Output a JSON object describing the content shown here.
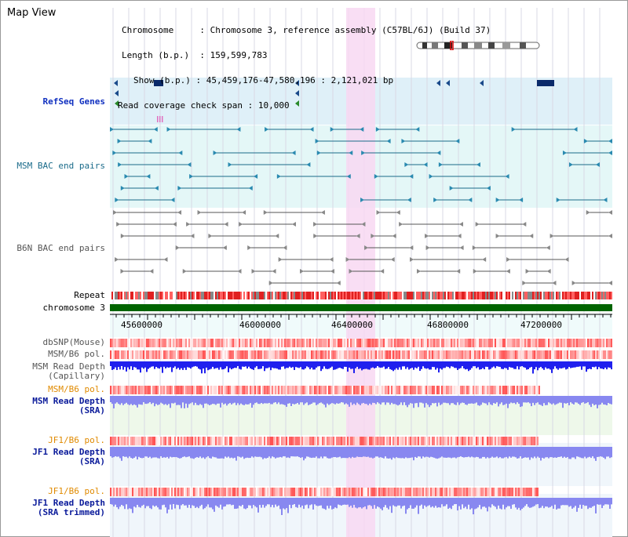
{
  "view_title": "Map View",
  "info": {
    "chromosome_label": "Chromosome",
    "chromosome_value": "Chromosome 3, reference assembly (C57BL/6J) (Build 37)",
    "length_label": "Length (b.p.)",
    "length_value": "159,599,783",
    "show_label": "Show (b.p.)",
    "show_value": "45,459,176-47,580,196 : 2,121,021 bp",
    "coverage_label": "Read coverage check span",
    "coverage_value": "10,000"
  },
  "tracks": {
    "refseq": "RefSeq Genes",
    "msm_bac": "MSM BAC end pairs",
    "b6n_bac": "B6N BAC end pairs",
    "repeat": "Repeat",
    "chromosome": "chromosome 3",
    "dbsnp": "dbSNP(Mouse)",
    "msm_b6_pol_1": "MSM/B6 pol.",
    "msm_read_depth_cap": "MSM Read Depth\n(Capillary)",
    "msm_b6_pol_2": "MSM/B6 pol.",
    "msm_read_depth_sra": "MSM Read Depth\n(SRA)",
    "jf1_b6_pol_1": "JF1/B6 pol.",
    "jf1_read_depth_sra": "JF1 Read Depth\n(SRA)",
    "jf1_b6_pol_2": "JF1/B6 pol.",
    "jf1_read_depth_trim": "JF1 Read Depth\n(SRA trimmed)"
  },
  "axis": {
    "ticks": [
      "45600000",
      "46000000",
      "46400000",
      "46800000",
      "47200000"
    ]
  },
  "colors": {
    "refseq_bg": "#dff0f8",
    "msm_bg": "#e4f7f7",
    "highlight": "#f8d8f2",
    "chromosome_bar": "#006400",
    "depth_blue": "#2020ee",
    "depth_light": "#8888f0",
    "pol_red": "#e84040"
  }
}
